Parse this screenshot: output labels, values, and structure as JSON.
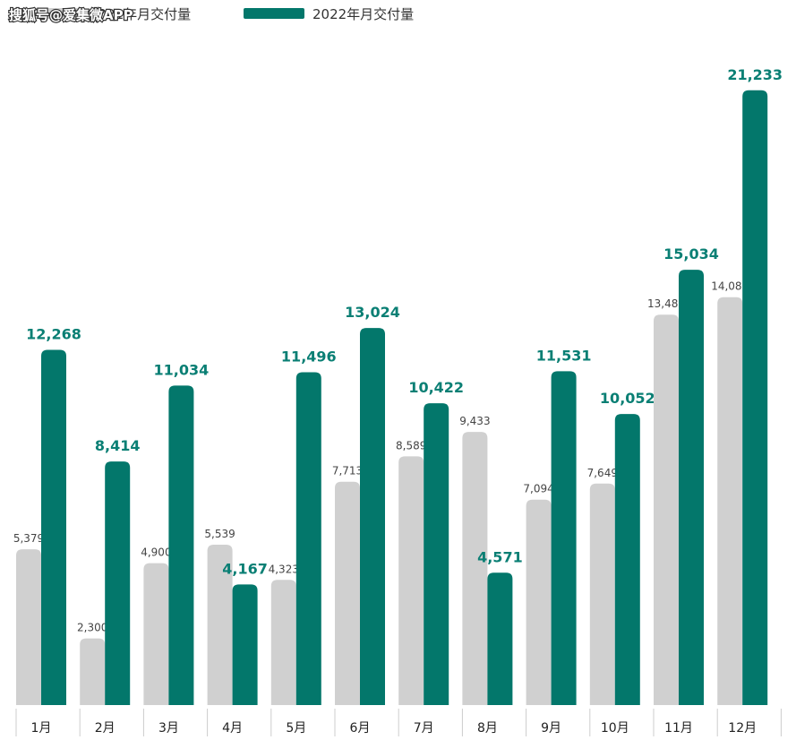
{
  "watermark": "搜狐号@爱集微APP",
  "chart_data": {
    "type": "bar",
    "categories": [
      "1月",
      "2月",
      "3月",
      "4月",
      "5月",
      "6月",
      "7月",
      "8月",
      "9月",
      "10月",
      "11月",
      "12月"
    ],
    "series": [
      {
        "name": "2021年月交付量",
        "color": "#d0d0d0",
        "values": [
          5379,
          2300,
          4900,
          5539,
          4323,
          7713,
          8589,
          9433,
          7094,
          7649,
          13485,
          14087
        ],
        "labels": [
          "5,379",
          "2,300",
          "4,900",
          "5,539",
          "4,323",
          "7,713",
          "8,589",
          "9,433",
          "7,094",
          "7,649",
          "13,485",
          "14,087"
        ]
      },
      {
        "name": "2022年月交付量",
        "color": "#03776b",
        "values": [
          12268,
          8414,
          11034,
          4167,
          11496,
          13024,
          10422,
          4571,
          11531,
          10052,
          15034,
          21233
        ],
        "labels": [
          "12,268",
          "8,414",
          "11,034",
          "4,167",
          "11,496",
          "13,024",
          "10,422",
          "4,571",
          "11,531",
          "10,052",
          "15,034",
          "21,233"
        ]
      }
    ],
    "ylim": [
      0,
      22000
    ],
    "grid": false,
    "legend_position": "top-left"
  }
}
